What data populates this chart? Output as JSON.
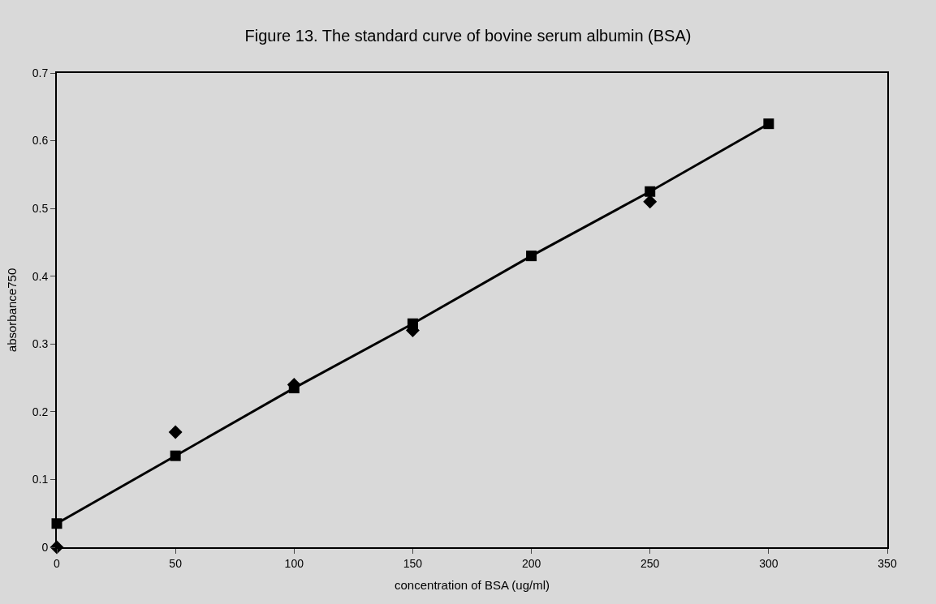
{
  "chart_data": {
    "type": "scatter",
    "title": "Figure 13. The standard curve of bovine serum albumin (BSA)",
    "xlabel": "concentration of BSA (ug/ml)",
    "ylabel": "absorbance750",
    "x": [
      0,
      50,
      100,
      150,
      200,
      250,
      300
    ],
    "series": [
      {
        "marker": "diamond",
        "color": "#000000",
        "values": [
          0.0,
          0.17,
          0.24,
          0.32,
          null,
          0.51,
          null
        ]
      },
      {
        "type": "line",
        "marker": "square",
        "color": "#000000",
        "values": [
          0.035,
          0.135,
          0.235,
          0.33,
          0.43,
          0.525,
          0.625
        ]
      }
    ],
    "xlim": [
      0,
      350
    ],
    "xticks": [
      0,
      50,
      100,
      150,
      200,
      250,
      300,
      350
    ],
    "ylim": [
      0,
      0.7
    ],
    "yticks": [
      0,
      0.1,
      0.2,
      0.3,
      0.4,
      0.5,
      0.6,
      0.7
    ]
  }
}
